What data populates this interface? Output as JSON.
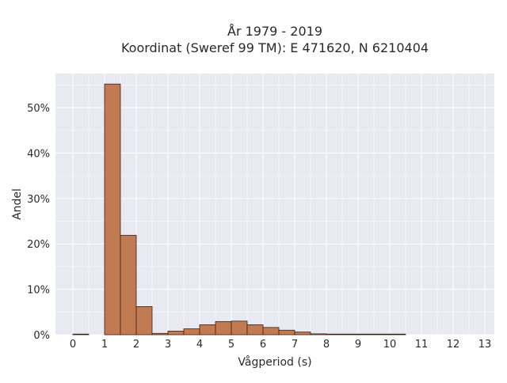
{
  "chart_data": {
    "type": "bar",
    "title_line1": "År 1979 - 2019",
    "title_line2": "Koordinat (Sweref 99 TM): E 471620, N 6210404",
    "xlabel": "Vågperiod (s)",
    "ylabel": "Andel",
    "xlim": [
      -0.55,
      13.3
    ],
    "ylim": [
      0,
      57.5
    ],
    "x_ticks": [
      0,
      1,
      2,
      3,
      4,
      5,
      6,
      7,
      8,
      9,
      10,
      11,
      12,
      13
    ],
    "y_ticks": [
      0,
      10,
      20,
      30,
      40,
      50
    ],
    "y_tick_labels": [
      "0%",
      "10%",
      "20%",
      "30%",
      "40%",
      "50%"
    ],
    "bin_width": 0.5,
    "series": [
      {
        "bin_edges_start": [
          0,
          1,
          1.5,
          2,
          2.5,
          3,
          3.5,
          4,
          4.5,
          5,
          5.5,
          6,
          6.5,
          7,
          7.5,
          8,
          8.5,
          9,
          9.5,
          10
        ],
        "values": [
          0.05,
          55.2,
          21.9,
          6.2,
          0.3,
          0.8,
          1.3,
          2.2,
          2.9,
          3.0,
          2.2,
          1.6,
          1.0,
          0.6,
          0.2,
          0.1,
          0.05,
          0.05,
          0.04,
          0.03
        ]
      }
    ],
    "bar_color": "#c17a52",
    "bar_edge_color": "#3a2418",
    "plot_background": "#e8e9f1",
    "grid": true,
    "grid_color": "#ffffff"
  }
}
